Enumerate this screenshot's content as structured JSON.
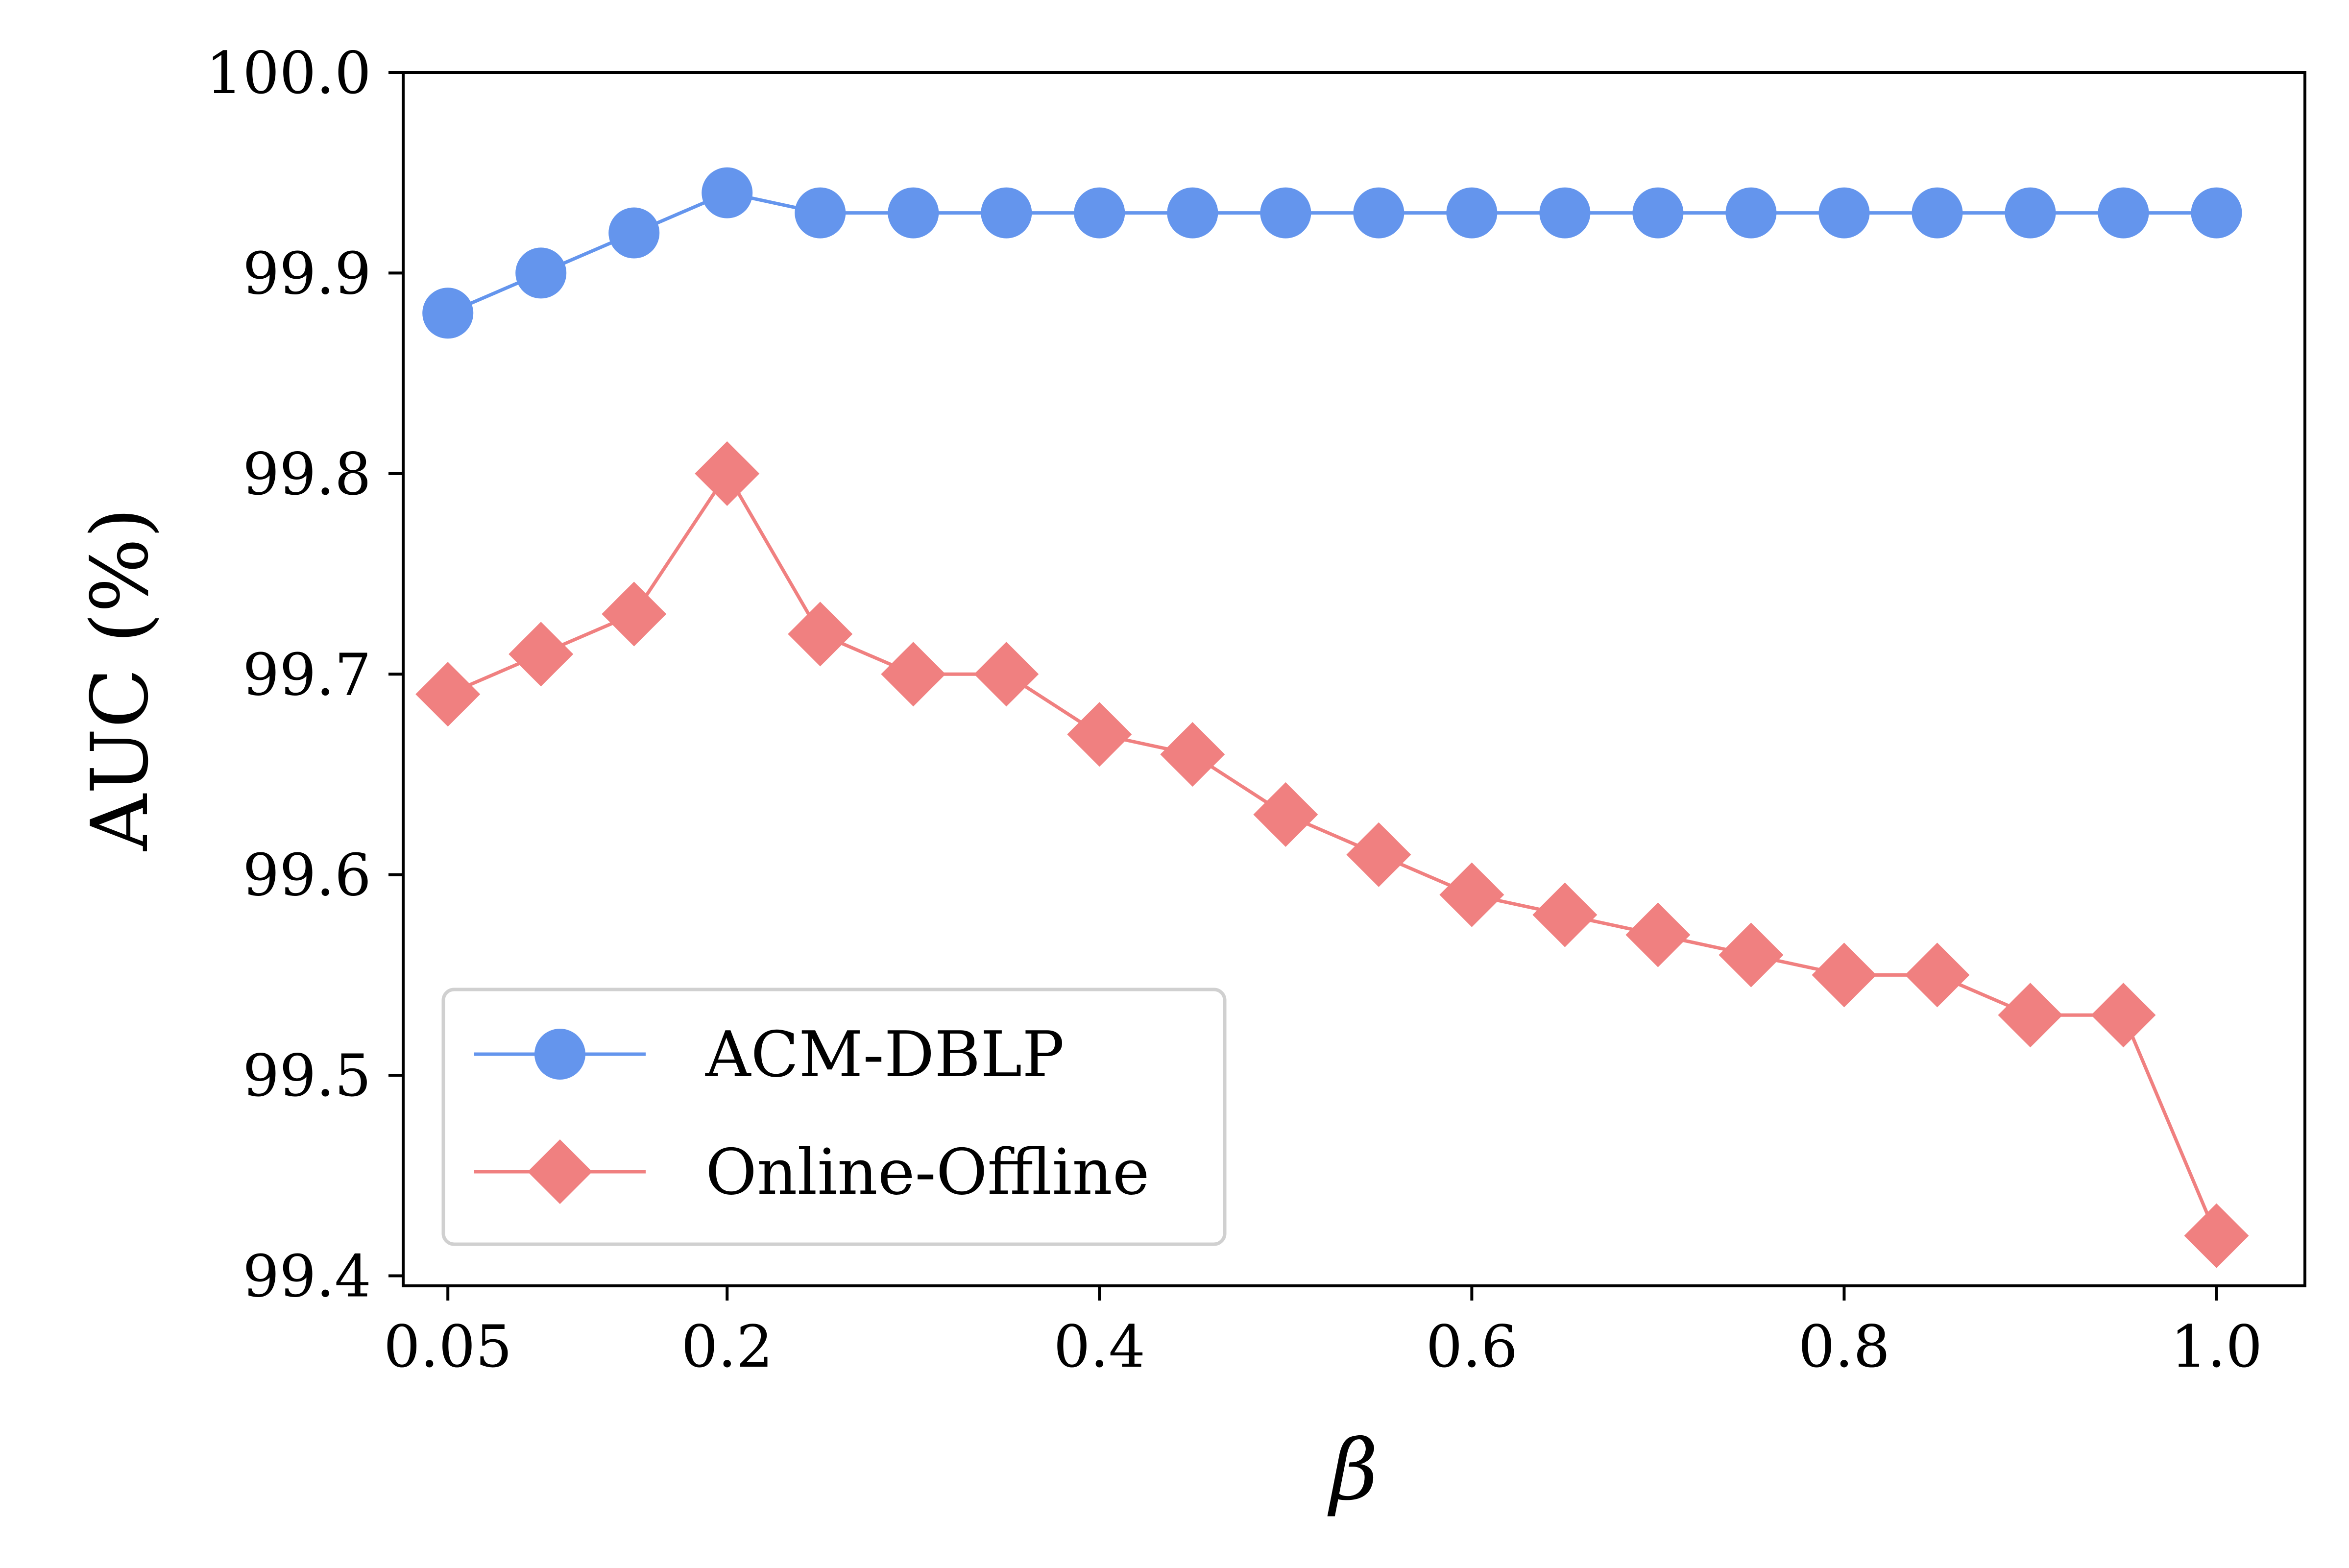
{
  "chart_data": {
    "type": "line",
    "xlabel": "β",
    "ylabel": "AUC (%)",
    "xlim": [
      0.026,
      1.0475
    ],
    "ylim": [
      99.395,
      100.0
    ],
    "xticks": [
      0.05,
      0.2,
      0.4,
      0.6,
      0.8,
      1.0
    ],
    "xtick_labels": [
      "0.05",
      "0.2",
      "0.4",
      "0.6",
      "0.8",
      "1.0"
    ],
    "yticks": [
      99.4,
      99.5,
      99.6,
      99.7,
      99.8,
      99.9,
      100.0
    ],
    "ytick_labels": [
      "99.4",
      "99.5",
      "99.6",
      "99.7",
      "99.8",
      "99.9",
      "100.0"
    ],
    "x": [
      0.05,
      0.1,
      0.15,
      0.2,
      0.25,
      0.3,
      0.35,
      0.4,
      0.45,
      0.5,
      0.55,
      0.6,
      0.65,
      0.7,
      0.75,
      0.8,
      0.85,
      0.9,
      0.95,
      1.0
    ],
    "grid": false,
    "legend_position": "lower-left",
    "series": [
      {
        "name": "ACM-DBLP",
        "color": "#6495ED",
        "marker": "circle",
        "values": [
          99.88,
          99.9,
          99.92,
          99.94,
          99.93,
          99.93,
          99.93,
          99.93,
          99.93,
          99.93,
          99.93,
          99.93,
          99.93,
          99.93,
          99.93,
          99.93,
          99.93,
          99.93,
          99.93,
          99.93
        ]
      },
      {
        "name": "Online-Offline",
        "color": "#F08080",
        "marker": "diamond",
        "values": [
          99.69,
          99.71,
          99.73,
          99.8,
          99.72,
          99.7,
          99.7,
          99.67,
          99.66,
          99.63,
          99.61,
          99.59,
          99.58,
          99.57,
          99.56,
          99.55,
          99.55,
          99.53,
          99.53,
          99.42
        ]
      }
    ]
  }
}
